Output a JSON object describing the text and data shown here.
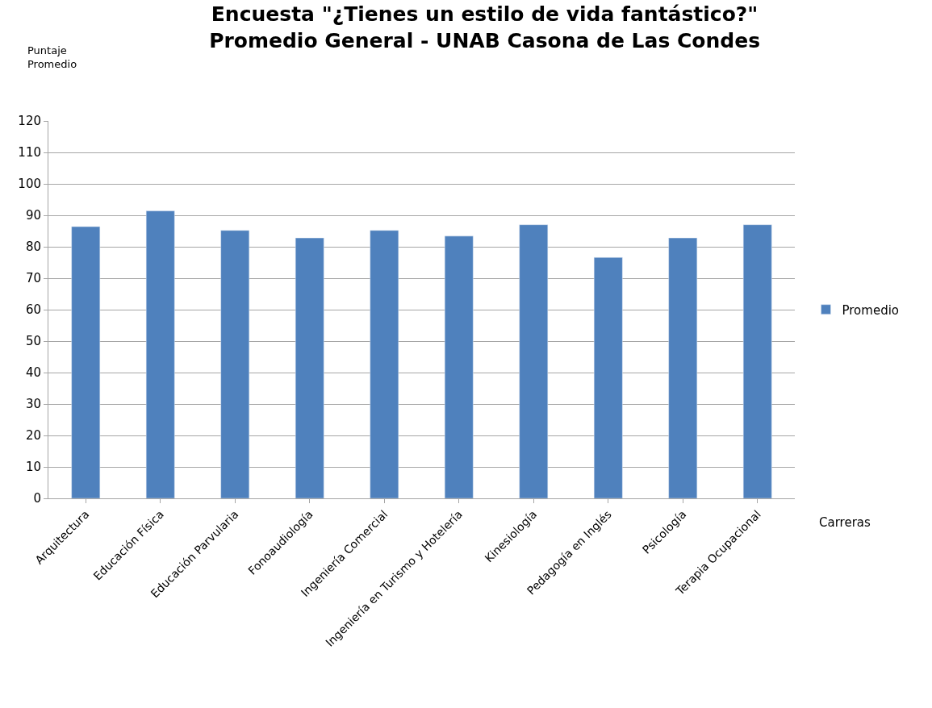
{
  "chart_data": {
    "type": "bar",
    "title": "Encuesta \"¿Tienes un estilo de vida fantástico?\"\nPromedio General - UNAB Casona de Las Condes",
    "ylabel": "Puntaje\nPromedio",
    "xlabel": "Carreras",
    "categories": [
      "Arquitectura",
      "Educación Física",
      "Educación Parvularia",
      "Fonoaudiología",
      "Ingeniería Comercial",
      "Ingeniería en Turismo y Hotelería",
      "Kinesiología",
      "Pedagogía en Inglés",
      "Psicología",
      "Terapia Ocupacional"
    ],
    "series": [
      {
        "name": "Promedio",
        "color": "#4f81bd",
        "values": [
          86.4,
          91.4,
          85.2,
          82.8,
          85.2,
          83.4,
          87.0,
          76.6,
          82.8,
          87.0
        ]
      }
    ],
    "ylim": [
      0,
      120
    ],
    "yticks": [
      0,
      10,
      20,
      30,
      40,
      50,
      60,
      70,
      80,
      90,
      100,
      110,
      120
    ],
    "grid": "y",
    "legend": "right"
  }
}
